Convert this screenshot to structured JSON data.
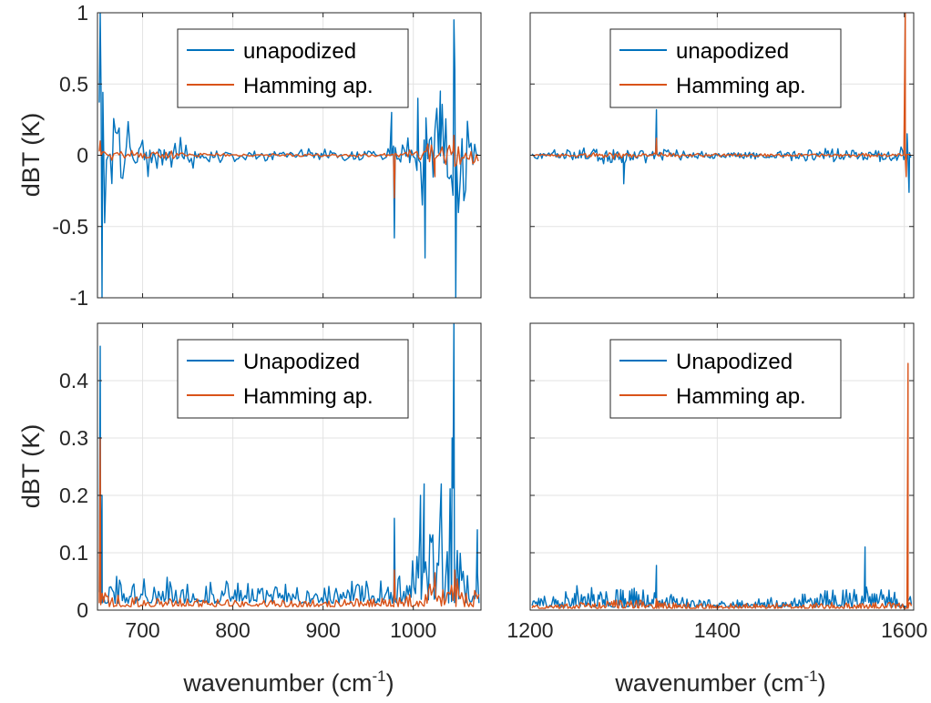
{
  "colors": {
    "series1": "#0072BD",
    "series2": "#D95319",
    "axis": "#262626",
    "grid": "#e3e3e3"
  },
  "figure": {
    "ylabel_top": "dBT (K)",
    "ylabel_bottom": "dBT (K)",
    "xlabel": "wavenumber (cm",
    "xlabel_sup": "-1",
    "xlabel_close": ")"
  },
  "chart_data": [
    {
      "id": "top-left",
      "type": "line",
      "xlim": [
        650,
        1075
      ],
      "ylim": [
        -1,
        1
      ],
      "xticks": [
        700,
        800,
        900,
        1000
      ],
      "show_xtick_labels": false,
      "yticks": [
        -1,
        -0.5,
        0,
        0.5,
        1
      ],
      "ytick_labels": [
        "-1",
        "-0.5",
        "0",
        "0.5",
        "1"
      ],
      "show_ytick_labels": true,
      "grid": true,
      "legend": {
        "position": "top",
        "entries": [
          "unapodized",
          "Hamming ap."
        ]
      },
      "series": [
        {
          "name": "unapodized",
          "color": "#0072BD",
          "signed": true,
          "step": 2,
          "base": 0.008,
          "envelope": [
            [
              650,
              0.6
            ],
            [
              652,
              1.0
            ],
            [
              656,
              0.9
            ],
            [
              660,
              0.7
            ],
            [
              665,
              0.55
            ],
            [
              670,
              0.45
            ],
            [
              680,
              0.33
            ],
            [
              690,
              0.25
            ],
            [
              700,
              0.2
            ],
            [
              715,
              0.16
            ],
            [
              730,
              0.14
            ],
            [
              745,
              0.15
            ],
            [
              755,
              0.12
            ],
            [
              770,
              0.07
            ],
            [
              800,
              0.05
            ],
            [
              850,
              0.04
            ],
            [
              900,
              0.05
            ],
            [
              960,
              0.06
            ],
            [
              975,
              0.08
            ],
            [
              985,
              0.1
            ],
            [
              1000,
              0.2
            ],
            [
              1010,
              0.55
            ],
            [
              1025,
              0.45
            ],
            [
              1045,
              0.7
            ],
            [
              1058,
              0.35
            ],
            [
              1075,
              0.15
            ]
          ],
          "spikes": [
            [
              653,
              1.0
            ],
            [
              655,
              -1.0
            ],
            [
              979,
              -0.58
            ],
            [
              976,
              0.3
            ],
            [
              1005,
              0.4
            ],
            [
              1013,
              -0.72
            ],
            [
              1045,
              0.95
            ],
            [
              1047,
              -1.0
            ],
            [
              1030,
              0.45
            ]
          ]
        },
        {
          "name": "Hamming ap.",
          "color": "#D95319",
          "signed": true,
          "step": 2,
          "base": 0.004,
          "envelope": [
            [
              650,
              0.08
            ],
            [
              660,
              0.06
            ],
            [
              700,
              0.03
            ],
            [
              740,
              0.035
            ],
            [
              760,
              0.02
            ],
            [
              800,
              0.012
            ],
            [
              900,
              0.012
            ],
            [
              975,
              0.02
            ],
            [
              1000,
              0.05
            ],
            [
              1020,
              0.1
            ],
            [
              1045,
              0.12
            ],
            [
              1075,
              0.05
            ]
          ],
          "spikes": [
            [
              653,
              0.1
            ],
            [
              979,
              -0.3
            ],
            [
              1024,
              -0.15
            ],
            [
              1045,
              0.14
            ]
          ]
        }
      ]
    },
    {
      "id": "top-right",
      "type": "line",
      "xlim": [
        1200,
        1610
      ],
      "ylim": [
        -1,
        1
      ],
      "xticks": [
        1200,
        1400,
        1600
      ],
      "show_xtick_labels": false,
      "yticks": [
        -1,
        -0.5,
        0,
        0.5,
        1
      ],
      "ytick_labels": [
        "-1",
        "-0.5",
        "0",
        "0.5",
        "1"
      ],
      "show_ytick_labels": false,
      "grid": true,
      "legend": {
        "position": "top",
        "entries": [
          "unapodized",
          "Hamming ap."
        ]
      },
      "series": [
        {
          "name": "unapodized",
          "color": "#0072BD",
          "signed": true,
          "step": 1.5,
          "base": 0.005,
          "envelope": [
            [
              1210,
              0.03
            ],
            [
              1240,
              0.07
            ],
            [
              1260,
              0.08
            ],
            [
              1290,
              0.09
            ],
            [
              1310,
              0.06
            ],
            [
              1340,
              0.05
            ],
            [
              1380,
              0.035
            ],
            [
              1420,
              0.03
            ],
            [
              1460,
              0.04
            ],
            [
              1500,
              0.06
            ],
            [
              1540,
              0.05
            ],
            [
              1570,
              0.06
            ],
            [
              1595,
              0.06
            ],
            [
              1605,
              0.1
            ]
          ],
          "spikes": [
            [
              1335,
              0.32
            ],
            [
              1300,
              -0.2
            ],
            [
              1605,
              -0.26
            ],
            [
              1603,
              0.15
            ]
          ]
        },
        {
          "name": "Hamming ap.",
          "color": "#D95319",
          "signed": true,
          "step": 1.5,
          "base": 0.003,
          "envelope": [
            [
              1210,
              0.01
            ],
            [
              1300,
              0.03
            ],
            [
              1400,
              0.012
            ],
            [
              1500,
              0.015
            ],
            [
              1600,
              0.015
            ]
          ],
          "spikes": [
            [
              1335,
              0.12
            ],
            [
              1601,
              1.0
            ],
            [
              1602,
              -0.15
            ]
          ]
        }
      ]
    },
    {
      "id": "bottom-left",
      "type": "line",
      "xlim": [
        650,
        1075
      ],
      "ylim": [
        0,
        0.5
      ],
      "xticks": [
        700,
        800,
        900,
        1000
      ],
      "xtick_labels": [
        "700",
        "800",
        "900",
        "1000"
      ],
      "show_xtick_labels": true,
      "yticks": [
        0,
        0.1,
        0.2,
        0.3,
        0.4
      ],
      "ytick_labels": [
        "0",
        "0.1",
        "0.2",
        "0.3",
        "0.4"
      ],
      "show_ytick_labels": true,
      "grid": true,
      "legend": {
        "position": "top",
        "entries": [
          "Unapodized",
          "Hamming ap."
        ]
      },
      "series": [
        {
          "name": "Unapodized",
          "color": "#0072BD",
          "signed": false,
          "step": 1.6,
          "base": 0.012,
          "envelope": [
            [
              650,
              0.05
            ],
            [
              660,
              0.04
            ],
            [
              700,
              0.035
            ],
            [
              750,
              0.035
            ],
            [
              800,
              0.03
            ],
            [
              850,
              0.028
            ],
            [
              900,
              0.03
            ],
            [
              960,
              0.03
            ],
            [
              990,
              0.04
            ],
            [
              1005,
              0.1
            ],
            [
              1020,
              0.12
            ],
            [
              1045,
              0.18
            ],
            [
              1060,
              0.07
            ],
            [
              1075,
              0.05
            ]
          ],
          "spikes": [
            [
              653,
              0.46
            ],
            [
              655,
              0.2
            ],
            [
              979,
              0.16
            ],
            [
              1008,
              0.2
            ],
            [
              1012,
              0.22
            ],
            [
              1031,
              0.22
            ],
            [
              1045,
              0.5
            ],
            [
              1043,
              0.3
            ],
            [
              1071,
              0.14
            ]
          ]
        },
        {
          "name": "Hamming ap.",
          "color": "#D95319",
          "signed": false,
          "step": 1.6,
          "base": 0.006,
          "envelope": [
            [
              650,
              0.02
            ],
            [
              700,
              0.012
            ],
            [
              800,
              0.01
            ],
            [
              900,
              0.01
            ],
            [
              990,
              0.012
            ],
            [
              1010,
              0.03
            ],
            [
              1030,
              0.04
            ],
            [
              1050,
              0.04
            ],
            [
              1075,
              0.015
            ]
          ],
          "spikes": [
            [
              653,
              0.3
            ],
            [
              979,
              0.07
            ],
            [
              1024,
              0.065
            ],
            [
              1046,
              0.07
            ]
          ]
        }
      ]
    },
    {
      "id": "bottom-right",
      "type": "line",
      "xlim": [
        1200,
        1610
      ],
      "ylim": [
        0,
        0.5
      ],
      "xticks": [
        1200,
        1400,
        1600
      ],
      "xtick_labels": [
        "1200",
        "1400",
        "1600"
      ],
      "show_xtick_labels": true,
      "yticks": [
        0,
        0.1,
        0.2,
        0.3,
        0.4
      ],
      "ytick_labels": [
        "0",
        "0.1",
        "0.2",
        "0.3",
        "0.4"
      ],
      "show_ytick_labels": false,
      "grid": true,
      "legend": {
        "position": "top",
        "entries": [
          "Unapodized",
          "Hamming ap."
        ]
      },
      "series": [
        {
          "name": "Unapodized",
          "color": "#0072BD",
          "signed": false,
          "step": 1.2,
          "base": 0.005,
          "envelope": [
            [
              1210,
              0.015
            ],
            [
              1240,
              0.03
            ],
            [
              1300,
              0.03
            ],
            [
              1340,
              0.02
            ],
            [
              1380,
              0.01
            ],
            [
              1420,
              0.01
            ],
            [
              1480,
              0.015
            ],
            [
              1520,
              0.025
            ],
            [
              1560,
              0.03
            ],
            [
              1600,
              0.02
            ]
          ],
          "spikes": [
            [
              1335,
              0.078
            ],
            [
              1558,
              0.11
            ],
            [
              1603,
              0.02
            ]
          ]
        },
        {
          "name": "Hamming ap.",
          "color": "#D95319",
          "signed": false,
          "step": 1.2,
          "base": 0.003,
          "envelope": [
            [
              1210,
              0.005
            ],
            [
              1300,
              0.012
            ],
            [
              1400,
              0.006
            ],
            [
              1500,
              0.008
            ],
            [
              1600,
              0.008
            ]
          ],
          "spikes": [
            [
              1604,
              0.43
            ],
            [
              1335,
              0.02
            ]
          ]
        }
      ]
    }
  ]
}
